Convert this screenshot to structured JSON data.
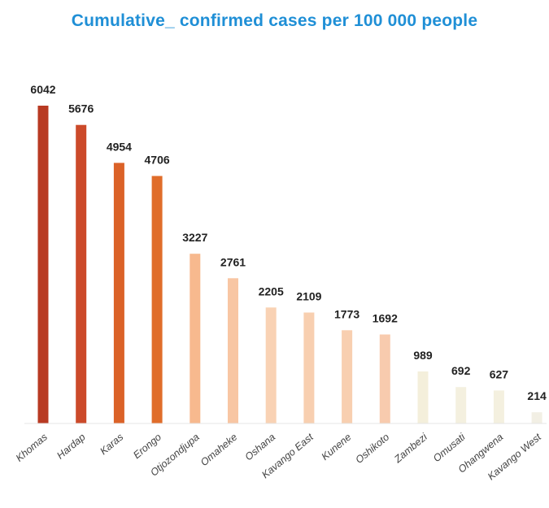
{
  "chart_data": {
    "type": "bar",
    "title": "Cumulative_ confirmed cases per 100 000 people",
    "xlabel": "",
    "ylabel": "",
    "categories": [
      "Khomas",
      "Hardap",
      "Karas",
      "Erongo",
      "Otjozondjupa",
      "Omaheke",
      "Oshana",
      "Kavango East",
      "Kunene",
      "Oshikoto",
      "Zambezi",
      "Omusati",
      "Ohangwena",
      "Kavango West"
    ],
    "values": [
      6042,
      5676,
      4954,
      4706,
      3227,
      2761,
      2205,
      2109,
      1773,
      1692,
      989,
      692,
      627,
      214
    ],
    "colors": [
      "#b83a22",
      "#cc4a2a",
      "#db6228",
      "#e06d2a",
      "#f7b98e",
      "#f8c6a3",
      "#f9d2b4",
      "#f8cfb0",
      "#f8cfb0",
      "#f8cbae",
      "#f4efdb",
      "#f4f0df",
      "#f4f0df",
      "#f2efe4"
    ],
    "grid": false,
    "legend": "none"
  }
}
